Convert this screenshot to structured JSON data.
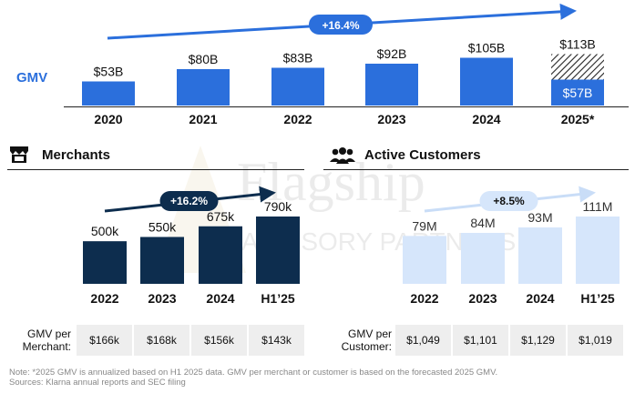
{
  "gmv": {
    "row_label": "GMV",
    "growth_label": "+16.4%",
    "divider_line": true,
    "categories": [
      "2020",
      "2021",
      "2022",
      "2023",
      "2024",
      "2025*"
    ],
    "labels": [
      "$53B",
      "$80B",
      "$83B",
      "$92B",
      "$105B",
      "$113B"
    ],
    "values": [
      53,
      80,
      83,
      92,
      105,
      113
    ],
    "h1_2025_label": "$57B",
    "h1_2025_value": 57,
    "colors": {
      "bar": "#2b6fdc",
      "hatch": "#222222",
      "arrow": "#2b6fdc"
    }
  },
  "merchants": {
    "title": "Merchants",
    "icon": "storefront-icon",
    "growth_label": "+16.2%",
    "categories": [
      "2022",
      "2023",
      "2024",
      "H1’25"
    ],
    "labels": [
      "500k",
      "550k",
      "675k",
      "790k"
    ],
    "values": [
      500,
      550,
      675,
      790
    ],
    "metric_label": [
      "GMV per",
      "Merchant:"
    ],
    "metric_values": [
      "$166k",
      "$168k",
      "$156k",
      "$143k"
    ],
    "colors": {
      "bar": "#0d2d4e",
      "arrow": "#0d2d4e"
    }
  },
  "customers": {
    "title": "Active Customers",
    "icon": "users-icon",
    "growth_label": "+8.5%",
    "categories": [
      "2022",
      "2023",
      "2024",
      "H1’25"
    ],
    "labels": [
      "79M",
      "84M",
      "93M",
      "111M"
    ],
    "values": [
      79,
      84,
      93,
      111
    ],
    "metric_label": [
      "GMV per",
      "Customer:"
    ],
    "metric_values": [
      "$1,049",
      "$1,101",
      "$1,129",
      "$1,019"
    ],
    "colors": {
      "bar": "#d6e6fb",
      "arrow": "#c9ddf7"
    }
  },
  "chart_data": [
    {
      "type": "bar",
      "title": "GMV",
      "categories": [
        "2020",
        "2021",
        "2022",
        "2023",
        "2024",
        "2025*"
      ],
      "series": [
        {
          "values": [
            53,
            80,
            83,
            92,
            105,
            113
          ]
        }
      ],
      "annotations": [
        "+16.4%",
        "$57B"
      ]
    },
    {
      "type": "bar",
      "title": "Merchants",
      "categories": [
        "2022",
        "2023",
        "2024",
        "H1’25"
      ],
      "series": [
        {
          "values": [
            500,
            550,
            675,
            790
          ]
        }
      ],
      "annotations": [
        "+16.2%"
      ]
    },
    {
      "type": "bar",
      "title": "Active Customers",
      "categories": [
        "2022",
        "2023",
        "2024",
        "H1’25"
      ],
      "series": [
        {
          "values": [
            79,
            84,
            93,
            111
          ]
        }
      ],
      "annotations": [
        "+8.5%"
      ]
    }
  ],
  "watermark": {
    "line1": "Flagship",
    "line2": "ADVISORY PARTNERS"
  },
  "notes": {
    "line1": "Note: *2025 GMV is annualized based on H1 2025 data. GMV per merchant or customer is based on the forecasted 2025 GMV.",
    "line2": "Sources: Klarna annual reports and SEC filing"
  }
}
